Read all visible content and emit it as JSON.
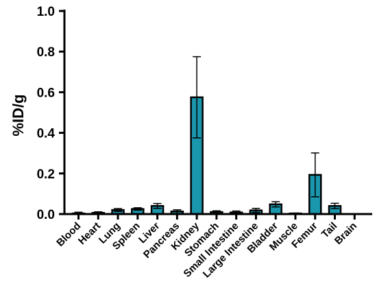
{
  "chart_data": {
    "type": "bar",
    "title": "",
    "xlabel": "",
    "ylabel": "%ID/g",
    "ylim": [
      0,
      1.0
    ],
    "yticks": [
      "0.0",
      "0.2",
      "0.4",
      "0.6",
      "0.8",
      "1.0"
    ],
    "grid": false,
    "categories": [
      "Blood",
      "Heart",
      "Lung",
      "Spleen",
      "Liver",
      "Pancreas",
      "Kidney",
      "Stomach",
      "Small Intestine",
      "Large Intestine",
      "Bladder",
      "Muscle",
      "Femur",
      "Tail",
      "Brain"
    ],
    "values": [
      0.003,
      0.006,
      0.02,
      0.025,
      0.04,
      0.013,
      0.575,
      0.01,
      0.008,
      0.018,
      0.048,
      0.003,
      0.193,
      0.04,
      0.0
    ],
    "errors": [
      0.006,
      0.005,
      0.007,
      0.006,
      0.012,
      0.008,
      0.2,
      0.006,
      0.007,
      0.01,
      0.013,
      0.002,
      0.108,
      0.013,
      0.0
    ],
    "bar_color": "#1a96ad",
    "edge_color": "#000000"
  }
}
